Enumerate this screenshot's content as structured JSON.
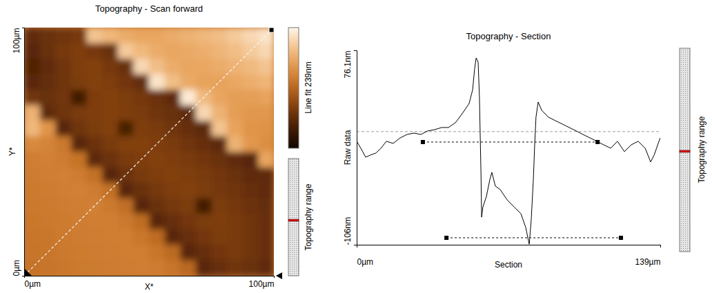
{
  "chart_data": [
    {
      "type": "heatmap",
      "title": "Topography - Scan forward",
      "x_label": "X*",
      "y_label": "Y*",
      "xlim": [
        0,
        100
      ],
      "ylim": [
        0,
        100
      ],
      "xticks": [
        {
          "value": 0,
          "label": "0µm"
        },
        {
          "value": 100,
          "label": "100µm"
        }
      ],
      "yticks": [
        {
          "value": 0,
          "label": "0µm"
        },
        {
          "value": 100,
          "label": "100µm"
        }
      ],
      "x": [
        3.125,
        9.375,
        15.625,
        21.875,
        28.125,
        34.375,
        40.625,
        46.875,
        53.125,
        59.375,
        65.625,
        71.875,
        78.125,
        84.375,
        90.625,
        96.875
      ],
      "y": [
        96.875,
        90.625,
        84.375,
        78.125,
        71.875,
        65.625,
        59.375,
        53.125,
        46.875,
        40.625,
        34.375,
        28.125,
        21.875,
        15.625,
        9.375,
        3.125
      ],
      "z": [
        [
          60,
          65,
          70,
          75,
          200,
          190,
          180,
          175,
          175,
          180,
          185,
          190,
          195,
          205,
          215,
          225
        ],
        [
          55,
          65,
          75,
          80,
          75,
          65,
          205,
          190,
          180,
          175,
          178,
          182,
          188,
          195,
          205,
          215
        ],
        [
          50,
          60,
          70,
          80,
          82,
          75,
          65,
          215,
          195,
          180,
          175,
          176,
          180,
          186,
          192,
          200
        ],
        [
          55,
          62,
          70,
          78,
          82,
          80,
          72,
          62,
          225,
          195,
          178,
          172,
          172,
          176,
          182,
          188
        ],
        [
          70,
          65,
          72,
          40,
          80,
          82,
          78,
          74,
          68,
          60,
          230,
          192,
          175,
          168,
          168,
          172
        ],
        [
          185,
          60,
          70,
          76,
          80,
          82,
          80,
          76,
          70,
          65,
          58,
          215,
          185,
          168,
          162,
          162
        ],
        [
          190,
          160,
          55,
          70,
          78,
          82,
          45,
          80,
          76,
          70,
          64,
          58,
          200,
          172,
          160,
          158
        ],
        [
          150,
          145,
          135,
          55,
          68,
          76,
          82,
          82,
          80,
          76,
          70,
          64,
          58,
          185,
          162,
          155
        ],
        [
          140,
          142,
          138,
          130,
          58,
          68,
          76,
          80,
          82,
          80,
          76,
          72,
          66,
          60,
          55,
          175
        ],
        [
          138,
          140,
          142,
          138,
          128,
          55,
          68,
          76,
          80,
          82,
          80,
          76,
          72,
          66,
          60,
          58
        ],
        [
          136,
          138,
          140,
          142,
          138,
          128,
          55,
          66,
          74,
          80,
          82,
          78,
          74,
          70,
          64,
          60
        ],
        [
          135,
          136,
          138,
          140,
          142,
          136,
          126,
          55,
          66,
          74,
          78,
          40,
          78,
          74,
          68,
          62
        ],
        [
          134,
          135,
          137,
          139,
          140,
          141,
          135,
          125,
          55,
          64,
          72,
          78,
          80,
          76,
          70,
          64
        ],
        [
          133,
          134,
          136,
          138,
          139,
          140,
          140,
          134,
          124,
          55,
          64,
          72,
          78,
          76,
          70,
          64
        ],
        [
          132,
          133,
          135,
          137,
          138,
          139,
          140,
          140,
          133,
          122,
          55,
          64,
          72,
          76,
          70,
          64
        ],
        [
          130,
          132,
          134,
          136,
          137,
          138,
          139,
          140,
          139,
          132,
          120,
          55,
          64,
          70,
          66,
          60
        ]
      ],
      "colorbar": {
        "label": "Line fit 239nm",
        "range": [
          0,
          239
        ]
      },
      "section_line": {
        "x": [
          0,
          100
        ],
        "y": [
          0,
          100
        ]
      },
      "range_label": "Topography range"
    },
    {
      "type": "line",
      "title": "Topography - Section",
      "x_label": "Section",
      "y_label": "Raw data",
      "xlim": [
        0,
        139
      ],
      "ylim": [
        -106,
        76.1
      ],
      "xticks": [
        {
          "value": 0,
          "label": "0µm"
        },
        {
          "value": 139,
          "label": "139µm"
        }
      ],
      "yticks": [
        {
          "value": -106,
          "label": "-106nm"
        },
        {
          "value": 76.1,
          "label": "76.1nm"
        }
      ],
      "x": [
        0,
        1.9,
        4.1,
        6.3,
        8.8,
        11.1,
        13.6,
        16.7,
        19.9,
        23.1,
        26.2,
        29.4,
        32.5,
        35.7,
        38.9,
        42.0,
        45.2,
        48.3,
        51.5,
        53.1,
        54.0,
        54.7,
        55.6,
        56.2,
        56.9,
        57.2,
        57.8,
        59.4,
        61.0,
        61.9,
        63.5,
        65.7,
        68.9,
        72.0,
        75.2,
        77.4,
        79.0,
        79.9,
        80.9,
        81.5,
        82.1,
        83.1,
        84.7,
        87.8,
        91.0,
        94.2,
        97.3,
        100.5,
        103.6,
        106.8,
        110.0,
        113.1,
        116.3,
        119.4,
        122.6,
        125.7,
        128.9,
        132.1,
        134.6,
        136.2,
        138.4,
        139.0
      ],
      "values": [
        -9.1,
        -15.6,
        -24.0,
        -22.0,
        -20.1,
        -15.6,
        -9.1,
        -11.1,
        -5.9,
        -2.7,
        -1.4,
        -2.7,
        0.6,
        1.8,
        3.8,
        3.8,
        8.3,
        16.7,
        26.4,
        39.3,
        58.7,
        69.0,
        65.1,
        32.8,
        -38.2,
        -80.2,
        -70.5,
        -60.8,
        -44.6,
        -38.2,
        -51.1,
        -54.3,
        -64.0,
        -70.5,
        -76.9,
        -89.8,
        -105.5,
        -83.4,
        -44.6,
        -12.4,
        13.5,
        27.7,
        19.9,
        13.5,
        10.2,
        7.0,
        3.8,
        0.6,
        -2.7,
        -5.9,
        -9.1,
        -12.4,
        -15.6,
        -9.1,
        -18.8,
        -12.4,
        -9.1,
        -15.6,
        -28.5,
        -22.0,
        -9.1,
        -5.9
      ],
      "color": "#000000",
      "reference_line": 0,
      "cursors": [
        {
          "x": [
            30.3,
            110.3
          ],
          "y": -9.8
        },
        {
          "x": [
            41.1,
            121.0
          ],
          "y": -99.5
        }
      ],
      "range_label": "Topography range"
    }
  ]
}
